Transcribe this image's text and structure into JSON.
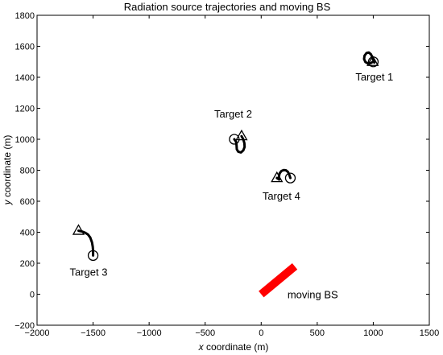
{
  "chart_data": {
    "type": "line",
    "title": "Radiation source trajectories and moving BS",
    "xlabel_var": "x",
    "xlabel_rest": " coordinate (m)",
    "ylabel_var": "y",
    "ylabel_rest": " coordinate (m)",
    "xlim": [
      -2000,
      1500
    ],
    "ylim": [
      -200,
      1800
    ],
    "xticks": [
      -2000,
      -1500,
      -1000,
      -500,
      0,
      500,
      1000,
      1500
    ],
    "yticks": [
      -200,
      0,
      200,
      400,
      600,
      800,
      1000,
      1200,
      1400,
      1600,
      1800
    ],
    "grid": false,
    "series": [
      {
        "color": "#000000",
        "start_marker": "circle",
        "end_marker": "triangle",
        "points": [
          [
            1000,
            1500
          ],
          [
            1010,
            1495
          ],
          [
            1005,
            1505
          ],
          [
            990,
            1530
          ],
          [
            980,
            1548
          ],
          [
            960,
            1560
          ],
          [
            940,
            1557
          ],
          [
            922,
            1540
          ],
          [
            918,
            1518
          ],
          [
            930,
            1498
          ],
          [
            955,
            1488
          ],
          [
            980,
            1492
          ],
          [
            995,
            1500
          ]
        ]
      },
      {
        "color": "#000000",
        "start_marker": "circle",
        "end_marker": "triangle",
        "points": [
          [
            -240,
            1000
          ],
          [
            -225,
            985
          ],
          [
            -220,
            960
          ],
          [
            -218,
            935
          ],
          [
            -205,
            920
          ],
          [
            -180,
            915
          ],
          [
            -160,
            928
          ],
          [
            -148,
            950
          ],
          [
            -150,
            975
          ],
          [
            -160,
            1000
          ],
          [
            -175,
            1020
          ]
        ]
      },
      {
        "color": "#000000",
        "start_marker": "circle",
        "end_marker": "triangle",
        "points": [
          [
            -1500,
            250
          ],
          [
            -1500,
            275
          ],
          [
            -1503,
            305
          ],
          [
            -1510,
            335
          ],
          [
            -1525,
            365
          ],
          [
            -1545,
            385
          ],
          [
            -1570,
            397
          ],
          [
            -1600,
            405
          ],
          [
            -1630,
            410
          ]
        ]
      },
      {
        "color": "#000000",
        "start_marker": "circle",
        "end_marker": "triangle",
        "points": [
          [
            260,
            750
          ],
          [
            250,
            772
          ],
          [
            238,
            790
          ],
          [
            220,
            800
          ],
          [
            200,
            801
          ],
          [
            180,
            795
          ],
          [
            165,
            780
          ],
          [
            158,
            760
          ],
          [
            160,
            740
          ],
          [
            150,
            745
          ],
          [
            140,
            750
          ]
        ]
      },
      {
        "color": "#ff0000",
        "points": [
          [
            0,
            0
          ],
          [
            300,
            180
          ]
        ]
      }
    ],
    "annotations": [
      {
        "text": "Target 1",
        "x": 1010,
        "y": 1380
      },
      {
        "text": "Target 2",
        "x": -250,
        "y": 1140
      },
      {
        "text": "Target 3",
        "x": -1540,
        "y": 120
      },
      {
        "text": "Target 4",
        "x": 180,
        "y": 610
      },
      {
        "text": "moving BS",
        "x": 460,
        "y": -25
      }
    ]
  }
}
